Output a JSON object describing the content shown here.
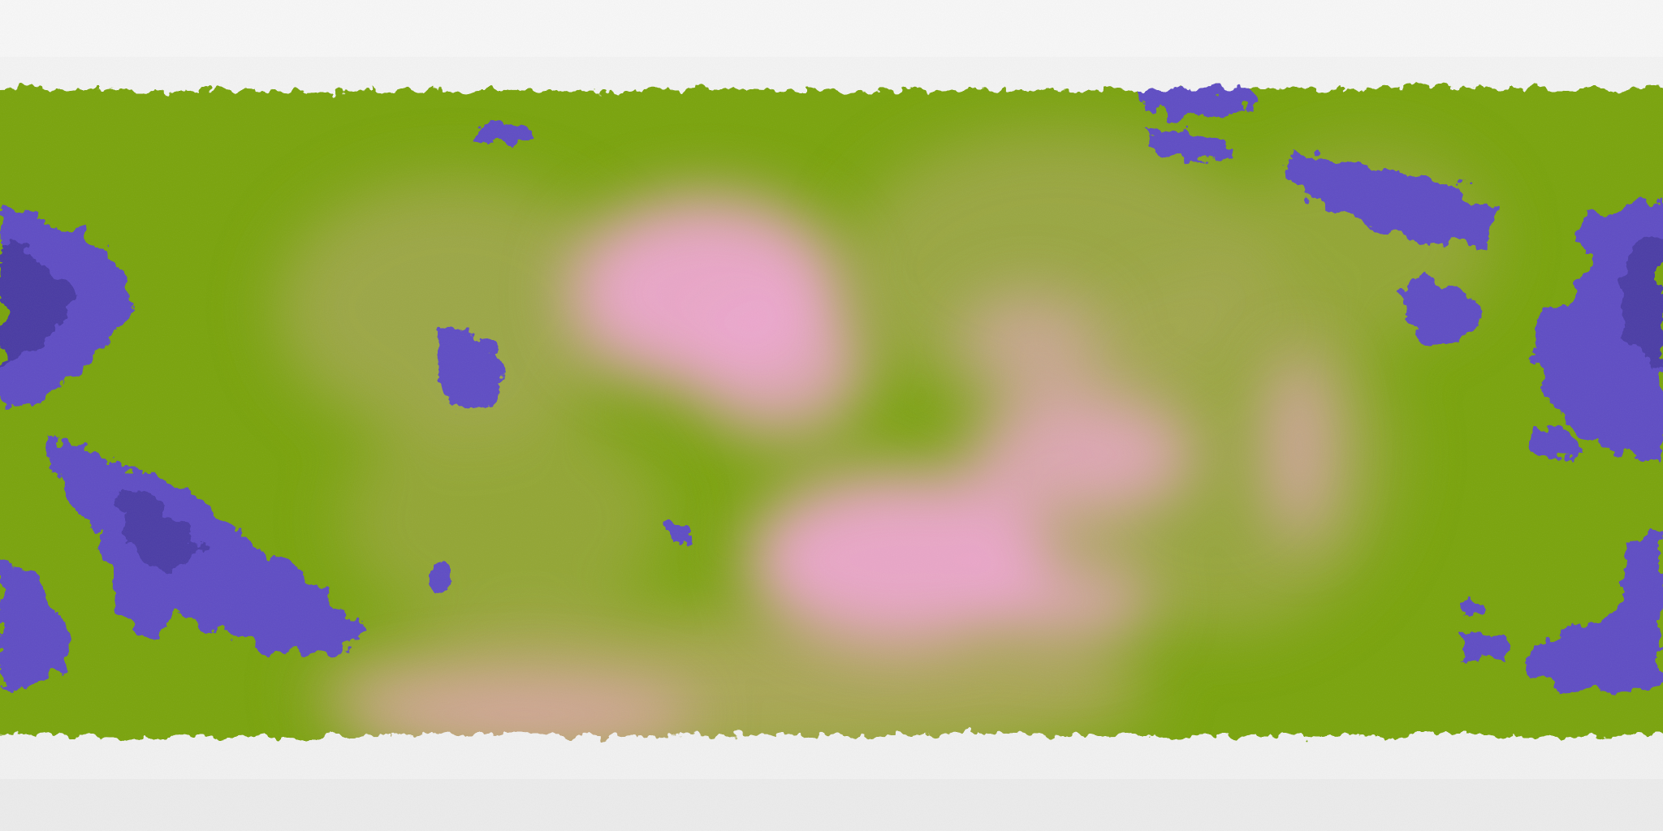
{
  "map": {
    "projection": "equirectangular",
    "terrain_classes": [
      {
        "name": "ice-cap",
        "color": "#f3f3f3"
      },
      {
        "name": "grassland",
        "color": "#7aa40c"
      },
      {
        "name": "dry-plain",
        "color": "#a8a858"
      },
      {
        "name": "highland",
        "color": "#efa7d2"
      },
      {
        "name": "water",
        "color": "#5f4ec4"
      },
      {
        "name": "deep-water",
        "color": "#3a2f8e"
      }
    ],
    "labels": []
  }
}
